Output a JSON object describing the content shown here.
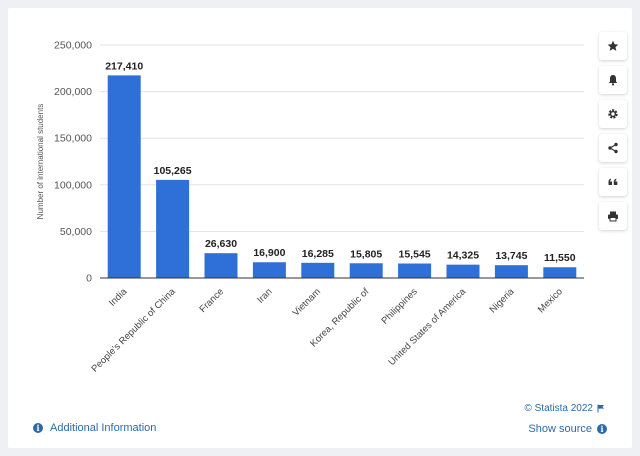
{
  "chart_data": {
    "type": "bar",
    "categories": [
      "India",
      "People's Republic of China",
      "France",
      "Iran",
      "Vietnam",
      "Korea, Republic of",
      "Philippines",
      "United States of America",
      "Nigeria",
      "Mexico"
    ],
    "values": [
      217410,
      105265,
      26630,
      16900,
      16285,
      15805,
      15545,
      14325,
      13745,
      11550
    ],
    "value_labels": [
      "217,410",
      "105,265",
      "26,630",
      "16,900",
      "16,285",
      "15,805",
      "15,545",
      "14,325",
      "13,745",
      "11,550"
    ],
    "ylabel": "Number of international students",
    "yticks": [
      0,
      50000,
      100000,
      150000,
      200000,
      250000
    ],
    "ytick_labels": [
      "0",
      "50,000",
      "100,000",
      "150,000",
      "200,000",
      "250,000"
    ],
    "ylim": [
      0,
      250000
    ],
    "grid": true,
    "bar_color": "#2f6fd8"
  },
  "sidebar": {
    "buttons": [
      {
        "name": "favorite-button",
        "icon": "star-icon"
      },
      {
        "name": "notification-button",
        "icon": "bell-icon"
      },
      {
        "name": "settings-button",
        "icon": "gear-icon"
      },
      {
        "name": "share-button",
        "icon": "share-icon"
      },
      {
        "name": "cite-button",
        "icon": "quote-icon"
      },
      {
        "name": "print-button",
        "icon": "printer-icon"
      }
    ]
  },
  "footer": {
    "additional_info": "Additional Information",
    "copyright": "© Statista 2022",
    "show_source": "Show source"
  },
  "colors": {
    "accent": "#2c6aa8",
    "bar": "#2f6fd8",
    "background": "#eef0f3"
  }
}
